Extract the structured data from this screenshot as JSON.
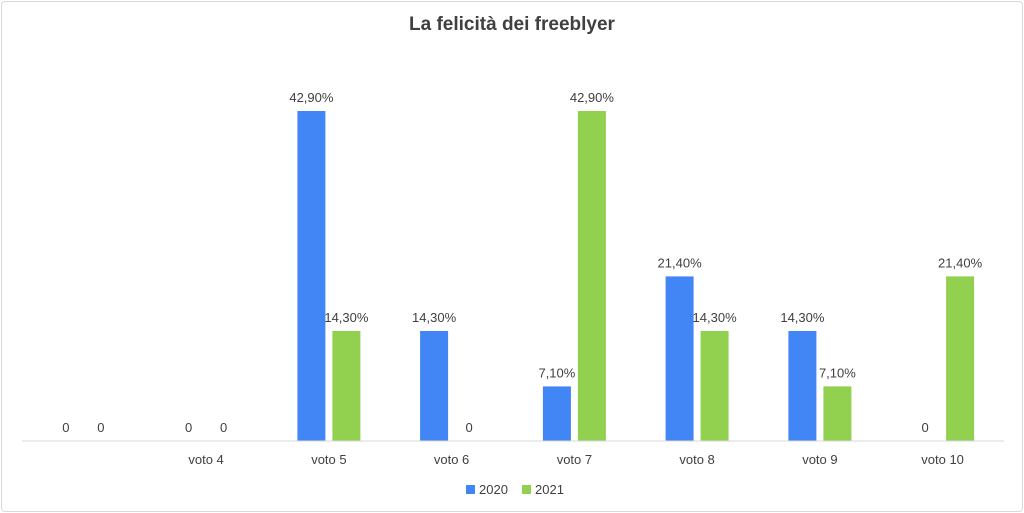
{
  "chart_data": {
    "type": "bar",
    "title": "La felicità dei freeblyer",
    "categories": [
      "",
      "voto 4",
      "voto 5",
      "voto 6",
      "voto 7",
      "voto 8",
      "voto 9",
      "voto 10"
    ],
    "series": [
      {
        "name": "2020",
        "color": "#4285f4",
        "values": [
          0,
          0,
          42.9,
          14.3,
          7.1,
          21.4,
          14.3,
          0
        ],
        "labels": [
          "0",
          "0",
          "42,90%",
          "14,30%",
          "7,10%",
          "21,40%",
          "14,30%",
          "0"
        ]
      },
      {
        "name": "2021",
        "color": "#92d050",
        "values": [
          0,
          0,
          14.3,
          0,
          42.9,
          14.3,
          7.1,
          21.4
        ],
        "labels": [
          "0",
          "0",
          "14,30%",
          "0",
          "42,90%",
          "14,30%",
          "7,10%",
          "21,40%"
        ]
      }
    ],
    "ylim": [
      0,
      42.9
    ],
    "grid": false,
    "legend": "bottom-center"
  }
}
